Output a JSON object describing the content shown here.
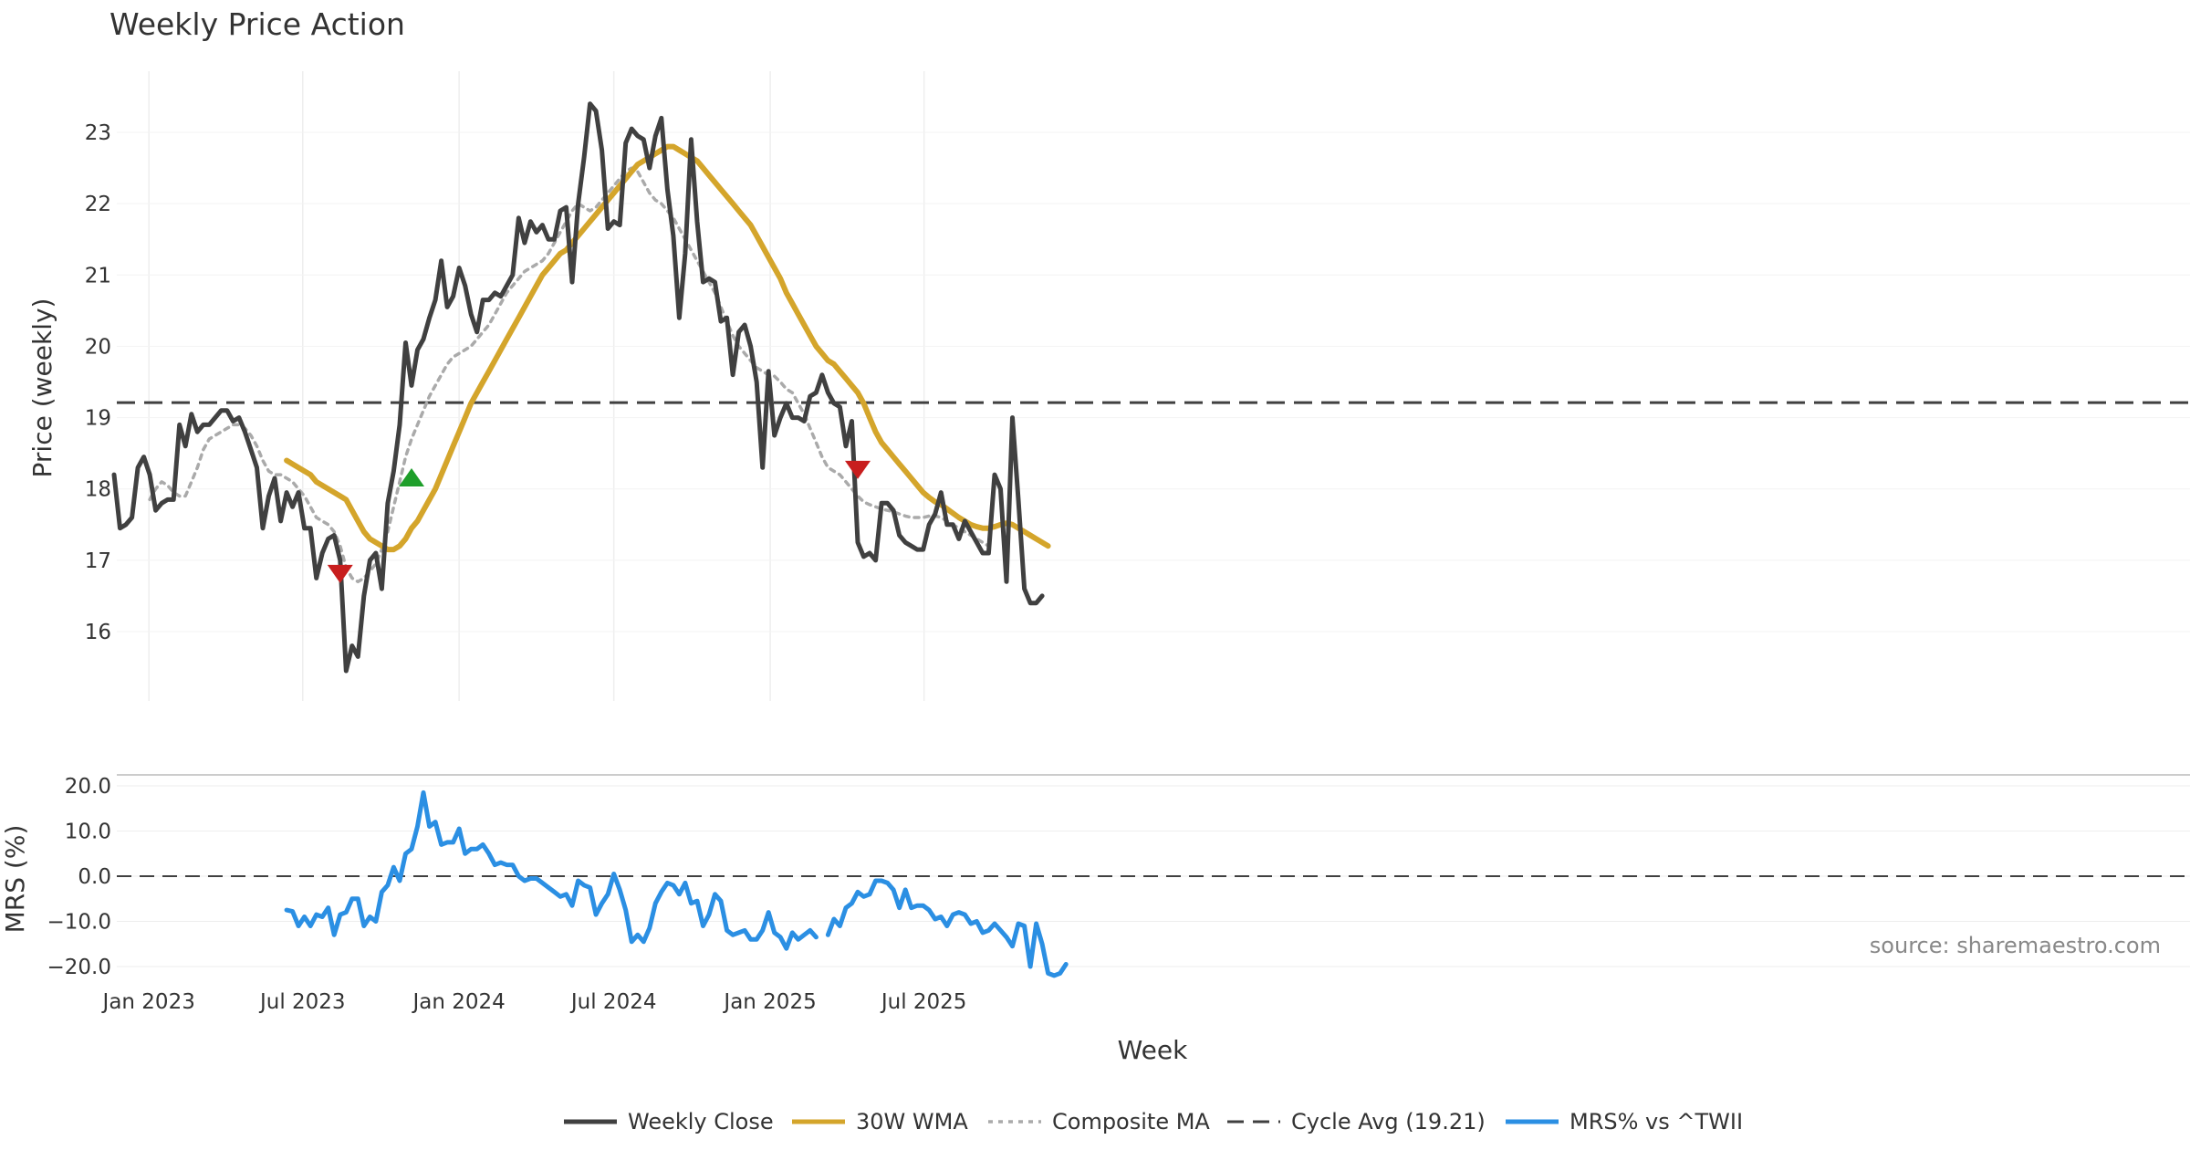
{
  "chart_data": {
    "type": "line",
    "title": "Weekly Price Action",
    "xlabel": "Week",
    "ylabel": "Price (weekly)",
    "x_range": [
      "2022-11-21",
      "2025-11-17"
    ],
    "x_ticks": [
      {
        "label": "Jan 2023",
        "date": "2023-01-01"
      },
      {
        "label": "Jul 2023",
        "date": "2023-07-01"
      },
      {
        "label": "Jan 2024",
        "date": "2024-01-01"
      },
      {
        "label": "Jul 2024",
        "date": "2024-07-01"
      },
      {
        "label": "Jan 2025",
        "date": "2025-01-01"
      },
      {
        "label": "Jul 2025",
        "date": "2025-07-01"
      }
    ],
    "price_panel": {
      "ylim": [
        15.0,
        23.8
      ],
      "yticks": [
        16,
        17,
        18,
        19,
        20,
        21,
        22,
        23
      ],
      "grid": true,
      "cycle_avg": 19.21,
      "series": [
        {
          "name": "Weekly Close",
          "color": "#404040",
          "start_index": 0,
          "values": [
            18.2,
            17.45,
            17.5,
            17.6,
            18.3,
            18.45,
            18.2,
            17.7,
            17.8,
            17.85,
            17.85,
            18.9,
            18.6,
            19.05,
            18.8,
            18.9,
            18.9,
            19.0,
            19.1,
            19.1,
            18.95,
            19.0,
            18.8,
            18.55,
            18.3,
            17.45,
            17.9,
            18.15,
            17.55,
            17.95,
            17.75,
            17.95,
            17.45,
            17.45,
            16.75,
            17.1,
            17.3,
            17.35,
            17.0,
            15.45,
            15.8,
            15.65,
            16.5,
            17.0,
            17.1,
            16.6,
            17.8,
            18.25,
            18.9,
            20.05,
            19.45,
            19.95,
            20.1,
            20.4,
            20.65,
            21.2,
            20.55,
            20.7,
            21.1,
            20.85,
            20.45,
            20.2,
            20.65,
            20.65,
            20.75,
            20.7,
            20.85,
            21.0,
            21.8,
            21.45,
            21.75,
            21.6,
            21.7,
            21.5,
            21.5,
            21.9,
            21.95,
            20.9,
            22.0,
            22.65,
            23.4,
            23.3,
            22.75,
            21.65,
            21.75,
            21.7,
            22.85,
            23.05,
            22.95,
            22.9,
            22.5,
            22.95,
            23.2,
            22.2,
            21.55,
            20.4,
            21.3,
            22.9,
            21.75,
            20.9,
            20.95,
            20.9,
            20.35,
            20.4,
            19.6,
            20.2,
            20.3,
            20.0,
            19.5,
            18.3,
            19.65,
            18.75,
            19.0,
            19.2,
            19.0,
            19.0,
            18.95,
            19.3,
            19.35,
            19.6,
            19.35,
            19.2,
            19.15,
            18.6,
            18.95,
            17.25,
            17.05,
            17.1,
            17.0,
            17.8,
            17.8,
            17.7,
            17.35,
            17.25,
            17.2,
            17.15,
            17.15,
            17.5,
            17.65,
            17.95,
            17.5,
            17.5,
            17.3,
            17.55,
            17.4,
            17.25,
            17.1,
            17.1,
            18.2,
            18.0,
            16.7,
            19.0,
            17.85,
            16.6,
            16.4,
            16.4,
            16.5
          ]
        },
        {
          "name": "30W WMA",
          "color": "#d4a52b",
          "start_index": 29,
          "values": [
            18.4,
            18.35,
            18.3,
            18.25,
            18.2,
            18.1,
            18.05,
            18.0,
            17.95,
            17.9,
            17.85,
            17.7,
            17.55,
            17.4,
            17.3,
            17.25,
            17.2,
            17.15,
            17.15,
            17.2,
            17.3,
            17.45,
            17.55,
            17.7,
            17.85,
            18.0,
            18.2,
            18.4,
            18.6,
            18.8,
            19.0,
            19.2,
            19.35,
            19.5,
            19.65,
            19.8,
            19.95,
            20.1,
            20.25,
            20.4,
            20.55,
            20.7,
            20.85,
            21.0,
            21.1,
            21.2,
            21.3,
            21.35,
            21.45,
            21.55,
            21.65,
            21.75,
            21.85,
            21.95,
            22.05,
            22.15,
            22.25,
            22.35,
            22.45,
            22.55,
            22.6,
            22.65,
            22.7,
            22.75,
            22.8,
            22.8,
            22.75,
            22.7,
            22.65,
            22.6,
            22.5,
            22.4,
            22.3,
            22.2,
            22.1,
            22.0,
            21.9,
            21.8,
            21.7,
            21.55,
            21.4,
            21.25,
            21.1,
            20.95,
            20.75,
            20.6,
            20.45,
            20.3,
            20.15,
            20.0,
            19.9,
            19.8,
            19.75,
            19.65,
            19.55,
            19.45,
            19.35,
            19.2,
            19.0,
            18.8,
            18.65,
            18.55,
            18.45,
            18.35,
            18.25,
            18.15,
            18.05,
            17.95,
            17.88,
            17.82,
            17.78,
            17.72,
            17.66,
            17.6,
            17.55,
            17.5,
            17.47,
            17.45,
            17.45,
            17.47,
            17.5,
            17.52,
            17.5,
            17.45,
            17.4,
            17.35,
            17.3,
            17.25,
            17.2
          ]
        },
        {
          "name": "Composite MA",
          "color": "#aaaaaa",
          "start_index": 6,
          "values": [
            17.85,
            18.0,
            18.1,
            18.05,
            17.95,
            17.9,
            17.9,
            18.1,
            18.3,
            18.55,
            18.7,
            18.75,
            18.8,
            18.85,
            18.9,
            18.9,
            18.85,
            18.75,
            18.6,
            18.4,
            18.25,
            18.2,
            18.2,
            18.15,
            18.1,
            18.0,
            17.9,
            17.75,
            17.6,
            17.55,
            17.5,
            17.4,
            17.2,
            16.9,
            16.75,
            16.7,
            16.75,
            16.85,
            16.95,
            17.15,
            17.4,
            17.75,
            18.1,
            18.45,
            18.7,
            18.9,
            19.1,
            19.3,
            19.45,
            19.6,
            19.75,
            19.85,
            19.9,
            19.95,
            20.0,
            20.1,
            20.2,
            20.3,
            20.45,
            20.6,
            20.75,
            20.85,
            20.95,
            21.05,
            21.1,
            21.15,
            21.2,
            21.3,
            21.45,
            21.6,
            21.75,
            21.9,
            22.0,
            21.95,
            21.9,
            21.95,
            22.05,
            22.15,
            22.25,
            22.35,
            22.45,
            22.5,
            22.45,
            22.3,
            22.15,
            22.05,
            22.0,
            21.9,
            21.8,
            21.65,
            21.5,
            21.35,
            21.2,
            21.05,
            20.9,
            20.75,
            20.55,
            20.35,
            20.15,
            20.0,
            19.9,
            19.8,
            19.7,
            19.65,
            19.6,
            19.58,
            19.5,
            19.4,
            19.35,
            19.2,
            19.05,
            18.85,
            18.65,
            18.45,
            18.3,
            18.25,
            18.2,
            18.1,
            18.0,
            17.9,
            17.82,
            17.78,
            17.75,
            17.72,
            17.7,
            17.68,
            17.65,
            17.62,
            17.6,
            17.6,
            17.6,
            17.62,
            17.62,
            17.6,
            17.55,
            17.5,
            17.45,
            17.4,
            17.35,
            17.3,
            17.25,
            17.2
          ]
        }
      ],
      "signals": [
        {
          "type": "down",
          "color": "#c81e1e",
          "index": 38,
          "value": 16.82
        },
        {
          "type": "up",
          "color": "#1e9e2a",
          "index": 50,
          "value": 18.15
        },
        {
          "type": "down",
          "color": "#c81e1e",
          "index": 125,
          "value": 18.28
        }
      ]
    },
    "mrs_panel": {
      "ylabel": "MRS (%)",
      "ylim": [
        -23,
        21
      ],
      "yticks": [
        20.0,
        10.0,
        0.0,
        -10.0,
        -20.0
      ],
      "ytick_labels": [
        "20.0",
        "10.0",
        "0.0",
        "−10.0",
        "−20.0"
      ],
      "zero_line": 0.0,
      "series": [
        {
          "name": "MRS% vs ^TWII",
          "color": "#2b8fe3",
          "segments": [
            {
              "start_index": 29,
              "values": [
                -7.5,
                -7.8,
                -11,
                -9,
                -11,
                -8.5,
                -9,
                -7,
                -13,
                -8.5,
                -8,
                -5,
                -5,
                -11,
                -9,
                -10,
                -3.5,
                -2,
                2,
                -1,
                5,
                6,
                11,
                18.5,
                11,
                12,
                7,
                7.5,
                7.5,
                10.5,
                5,
                6,
                6,
                7,
                5,
                2.5,
                3,
                2.5,
                2.5,
                0,
                -1,
                -0.5,
                -0.5,
                -1.5,
                -2.5,
                -3.5,
                -4.5,
                -4,
                -6.5,
                -1,
                -2,
                -2.5,
                -8.5,
                -6,
                -4,
                0.5,
                -3,
                -7.5,
                -14.5,
                -13,
                -14.5,
                -11.5,
                -6,
                -3.5,
                -1.5,
                -2,
                -4,
                -1.5,
                -6,
                -5.5,
                -11,
                -8.5,
                -4,
                -5.5,
                -12,
                -13,
                -12.5,
                -12,
                -14,
                -14,
                -12,
                -8,
                -12.5,
                -13.5,
                -16,
                -12.5,
                -14,
                -13,
                -12,
                -13.5
              ]
            },
            {
              "start_index": 120,
              "values": [
                -13,
                -9.5,
                -11,
                -7,
                -6,
                -3.5,
                -4.5,
                -4,
                -1,
                -1,
                -1.5,
                -3,
                -7,
                -3,
                -7,
                -6.5,
                -6.5,
                -7.5,
                -9.5,
                -9,
                -11,
                -8.5,
                -8,
                -8.5,
                -10.5,
                -10,
                -12.5,
                -12,
                -10.5,
                -12,
                -13.5,
                -15.5,
                -10.5,
                -11,
                -20,
                -10.5,
                -15,
                -21.5,
                -22,
                -21.5,
                -19.5
              ]
            }
          ]
        }
      ]
    },
    "legend": [
      {
        "label": "Weekly Close",
        "style": "solid",
        "color": "#404040"
      },
      {
        "label": "30W WMA",
        "style": "solid",
        "color": "#d4a52b"
      },
      {
        "label": "Composite MA",
        "style": "dotted",
        "color": "#aaaaaa"
      },
      {
        "label": "Cycle Avg (19.21)",
        "style": "dashed",
        "color": "#404040"
      },
      {
        "label": "MRS% vs ^TWII",
        "style": "solid",
        "color": "#2b8fe3"
      }
    ],
    "source": "source: sharemaestro.com"
  }
}
